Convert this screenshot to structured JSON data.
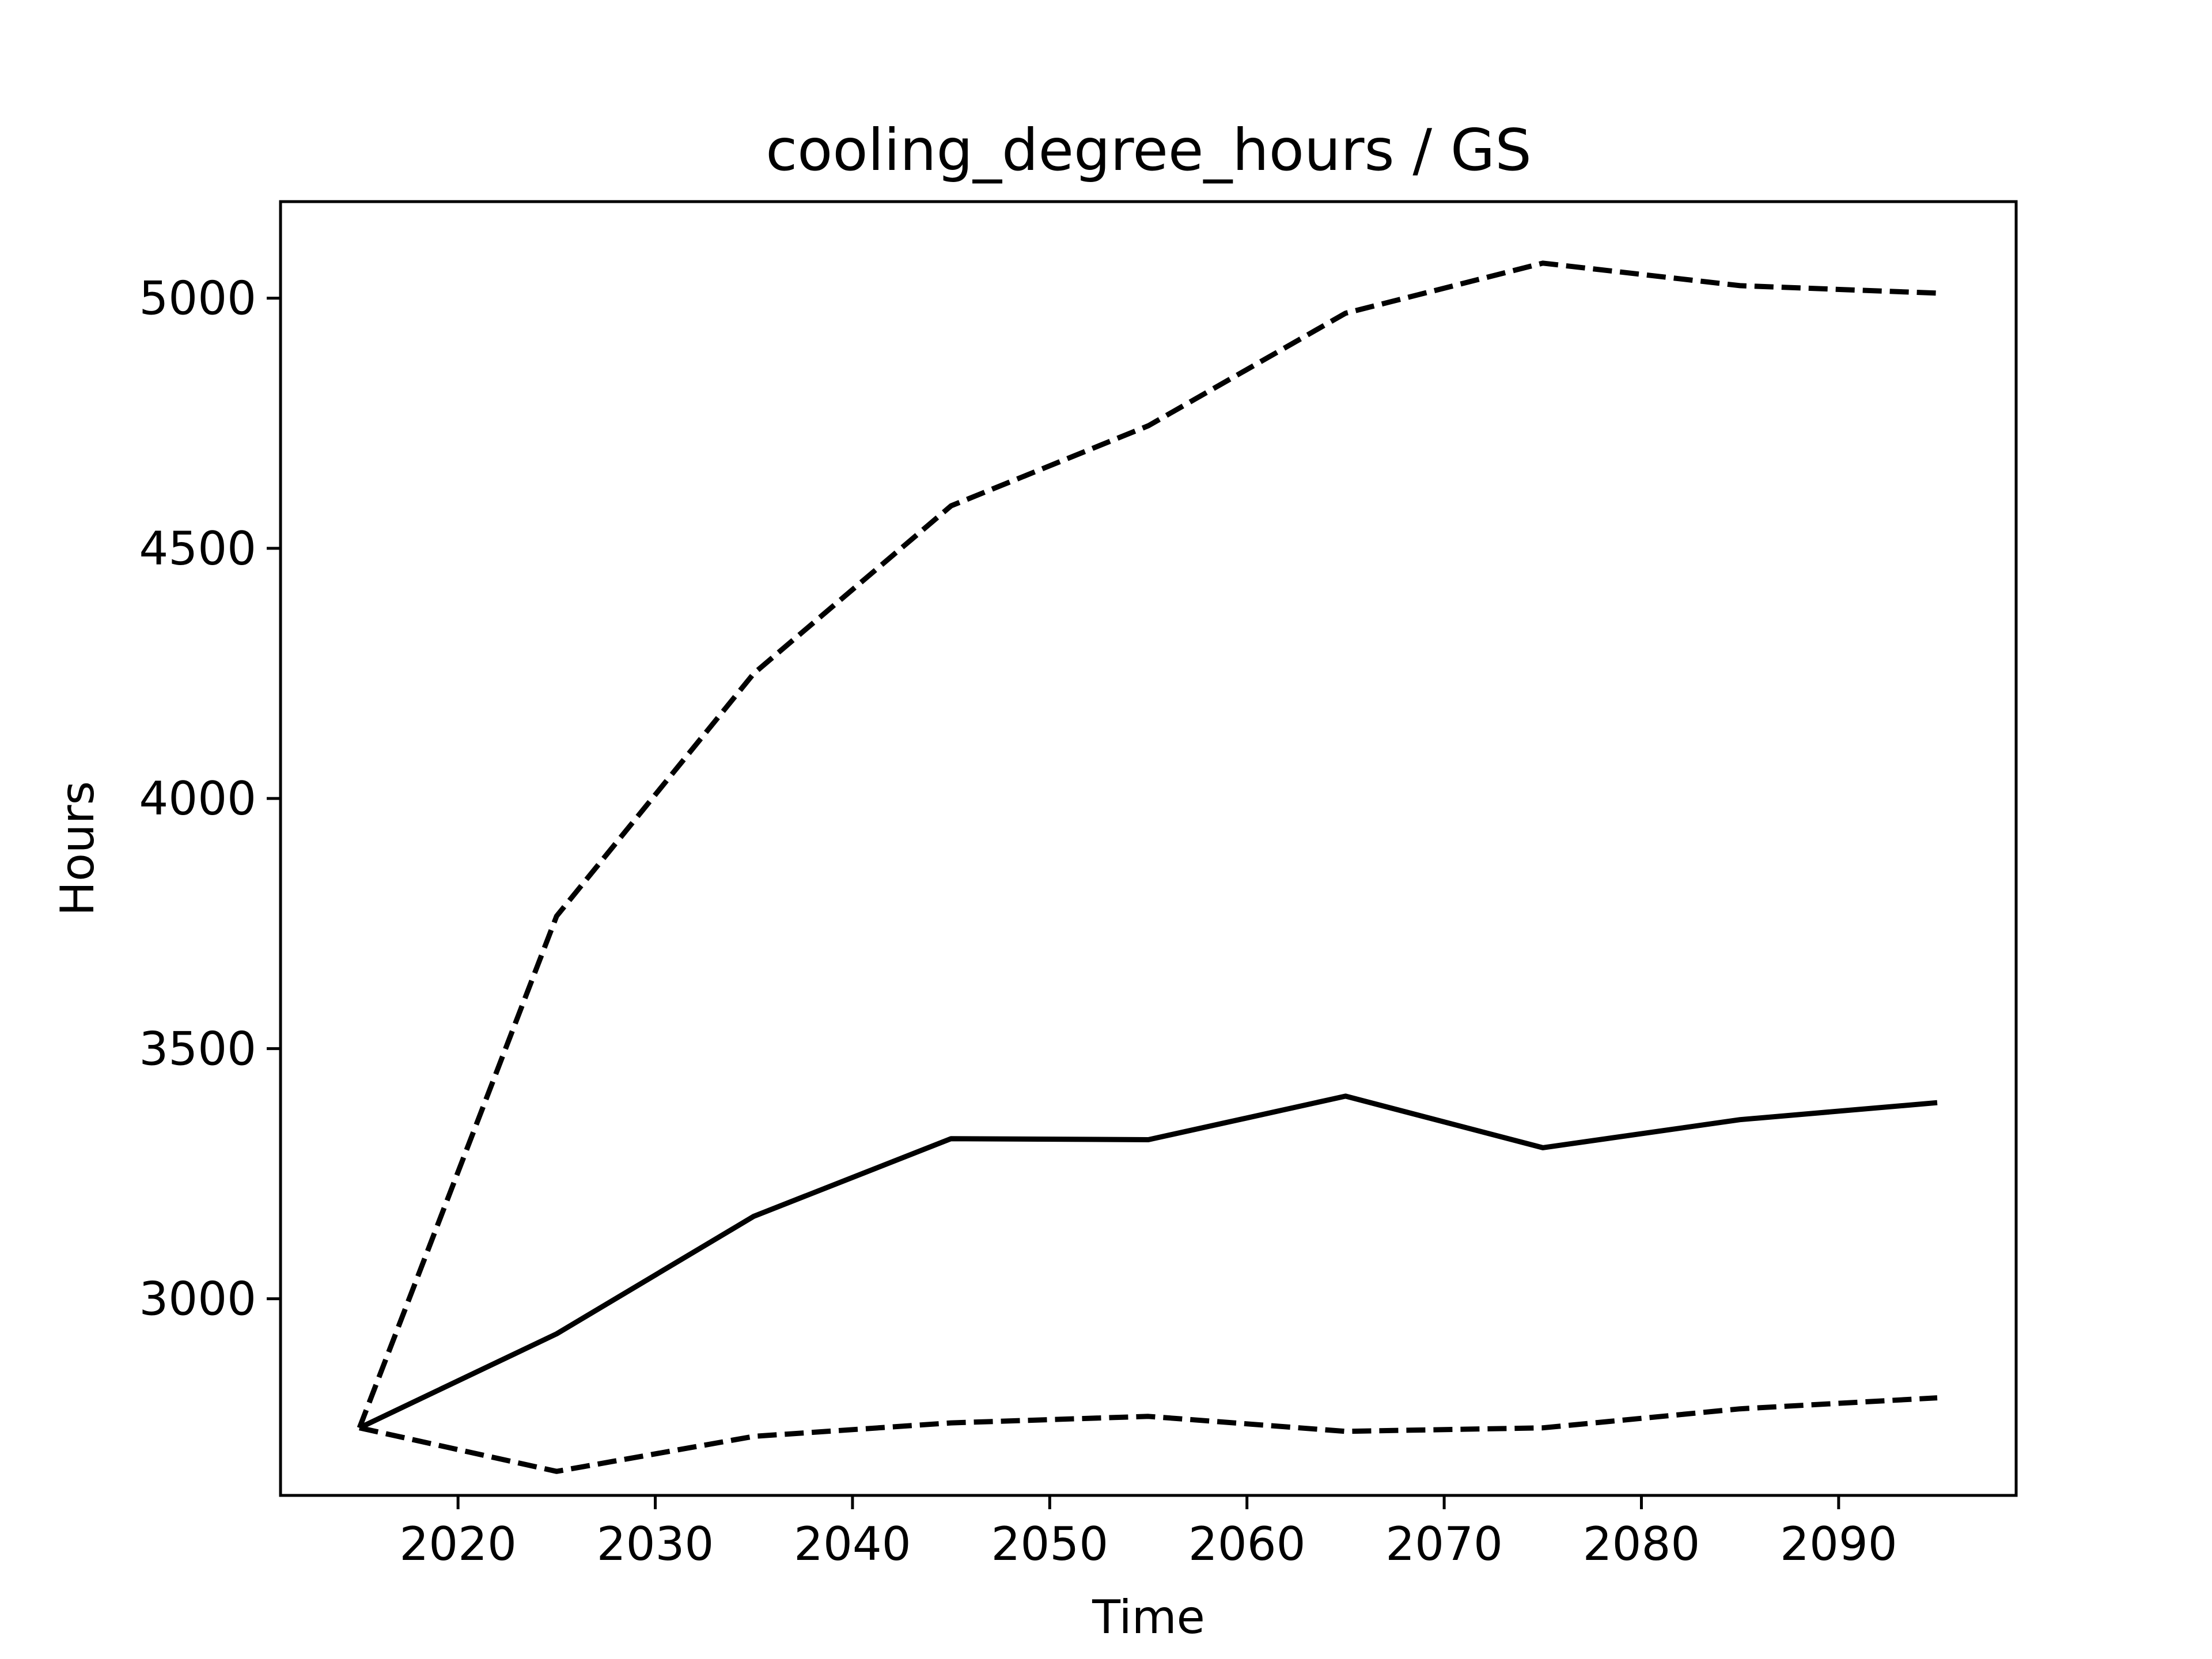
{
  "chart_data": {
    "type": "line",
    "title": "cooling_degree_hours / GS",
    "xlabel": "Time",
    "ylabel": "Hours",
    "xlim": [
      2011,
      2099
    ],
    "ylim": [
      2607,
      5193
    ],
    "xticks": [
      2020,
      2030,
      2040,
      2050,
      2060,
      2070,
      2080,
      2090
    ],
    "yticks": [
      3000,
      3500,
      4000,
      4500,
      5000
    ],
    "grid": false,
    "x": [
      2015,
      2025,
      2035,
      2045,
      2055,
      2065,
      2075,
      2085,
      2095
    ],
    "series": [
      {
        "style": "dashed",
        "values": [
          2742,
          3765,
          4250,
          4585,
          4745,
          4970,
          5070,
          5025,
          5010
        ]
      },
      {
        "style": "solid",
        "values": [
          2742,
          2930,
          3165,
          3320,
          3318,
          3405,
          3302,
          3358,
          3392
        ]
      },
      {
        "style": "dashed",
        "values": [
          2742,
          2655,
          2725,
          2752,
          2765,
          2735,
          2742,
          2780,
          2802
        ]
      }
    ]
  }
}
